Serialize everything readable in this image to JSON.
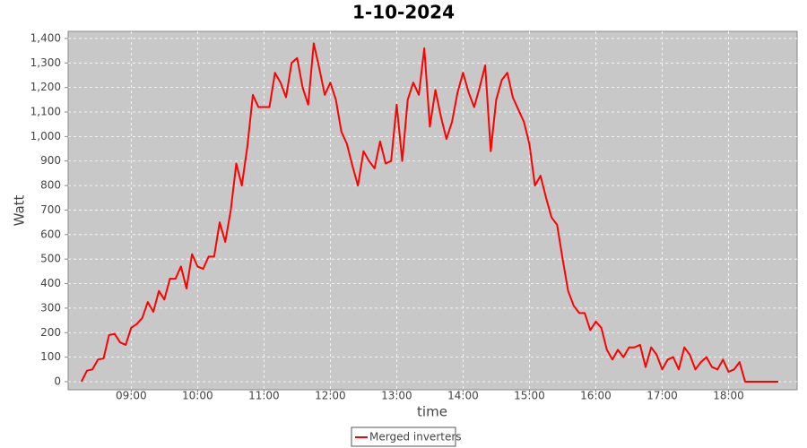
{
  "chart_data": {
    "type": "line",
    "title": "1-10-2024",
    "x_label": "time",
    "y_label": "Watt",
    "xlim": [
      "08:03",
      "19:02"
    ],
    "xticks": [
      "09:00",
      "10:00",
      "11:00",
      "12:00",
      "13:00",
      "14:00",
      "15:00",
      "16:00",
      "17:00",
      "18:00"
    ],
    "ylim": [
      -33,
      1429
    ],
    "yticks": [
      0,
      100,
      200,
      300,
      400,
      500,
      600,
      700,
      800,
      900,
      {
        "value": 1000,
        "label": "1,000"
      },
      {
        "value": 1100,
        "label": "1,100"
      },
      {
        "value": 1200,
        "label": "1,200"
      },
      {
        "value": 1300,
        "label": "1,300"
      },
      {
        "value": 1400,
        "label": "1,400"
      }
    ],
    "grid": true,
    "legend": "bottom",
    "x": [
      "08:15",
      "08:20",
      "08:25",
      "08:30",
      "08:35",
      "08:40",
      "08:45",
      "08:50",
      "08:55",
      "09:00",
      "09:05",
      "09:10",
      "09:15",
      "09:20",
      "09:25",
      "09:30",
      "09:35",
      "09:40",
      "09:45",
      "09:50",
      "09:55",
      "10:00",
      "10:05",
      "10:10",
      "10:15",
      "10:20",
      "10:25",
      "10:30",
      "10:35",
      "10:40",
      "10:45",
      "10:50",
      "10:55",
      "11:00",
      "11:05",
      "11:10",
      "11:15",
      "11:20",
      "11:25",
      "11:30",
      "11:35",
      "11:40",
      "11:45",
      "11:50",
      "11:55",
      "12:00",
      "12:05",
      "12:10",
      "12:15",
      "12:20",
      "12:25",
      "12:30",
      "12:35",
      "12:40",
      "12:45",
      "12:50",
      "12:55",
      "13:00",
      "13:05",
      "13:10",
      "13:15",
      "13:20",
      "13:25",
      "13:30",
      "13:35",
      "13:40",
      "13:45",
      "13:50",
      "13:55",
      "14:00",
      "14:05",
      "14:10",
      "14:15",
      "14:20",
      "14:25",
      "14:30",
      "14:35",
      "14:40",
      "14:45",
      "14:50",
      "14:55",
      "15:00",
      "15:05",
      "15:10",
      "15:15",
      "15:20",
      "15:25",
      "15:30",
      "15:35",
      "15:40",
      "15:45",
      "15:50",
      "15:55",
      "16:00",
      "16:05",
      "16:10",
      "16:15",
      "16:20",
      "16:25",
      "16:30",
      "16:35",
      "16:40",
      "16:45",
      "16:50",
      "16:55",
      "17:00",
      "17:05",
      "17:10",
      "17:15",
      "17:20",
      "17:25",
      "17:30",
      "17:35",
      "17:40",
      "17:45",
      "17:50",
      "17:55",
      "18:00",
      "18:05",
      "18:10",
      "18:15",
      "18:20",
      "18:25",
      "18:30",
      "18:35",
      "18:40",
      "18:45"
    ],
    "series": [
      {
        "name": "Merged inverters",
        "color": "#ff0000",
        "values": [
          0,
          45,
          50,
          90,
          95,
          190,
          195,
          160,
          150,
          220,
          235,
          260,
          325,
          285,
          370,
          335,
          420,
          420,
          470,
          380,
          520,
          470,
          460,
          510,
          510,
          650,
          570,
          700,
          890,
          800,
          960,
          1170,
          1120,
          1120,
          1120,
          1260,
          1220,
          1160,
          1300,
          1320,
          1200,
          1130,
          1380,
          1280,
          1170,
          1220,
          1150,
          1020,
          970,
          880,
          800,
          940,
          900,
          870,
          980,
          890,
          900,
          1130,
          900,
          1150,
          1220,
          1170,
          1360,
          1040,
          1190,
          1080,
          990,
          1060,
          1180,
          1260,
          1180,
          1120,
          1200,
          1290,
          940,
          1150,
          1230,
          1260,
          1160,
          1110,
          1060,
          970,
          800,
          840,
          750,
          670,
          640,
          500,
          370,
          310,
          280,
          280,
          210,
          245,
          220,
          130,
          90,
          130,
          100,
          140,
          140,
          150,
          60,
          140,
          110,
          50,
          90,
          100,
          50,
          140,
          110,
          50,
          80,
          100,
          60,
          50,
          90,
          40,
          50,
          80,
          0,
          0,
          0,
          0,
          0,
          0,
          0
        ]
      }
    ]
  }
}
